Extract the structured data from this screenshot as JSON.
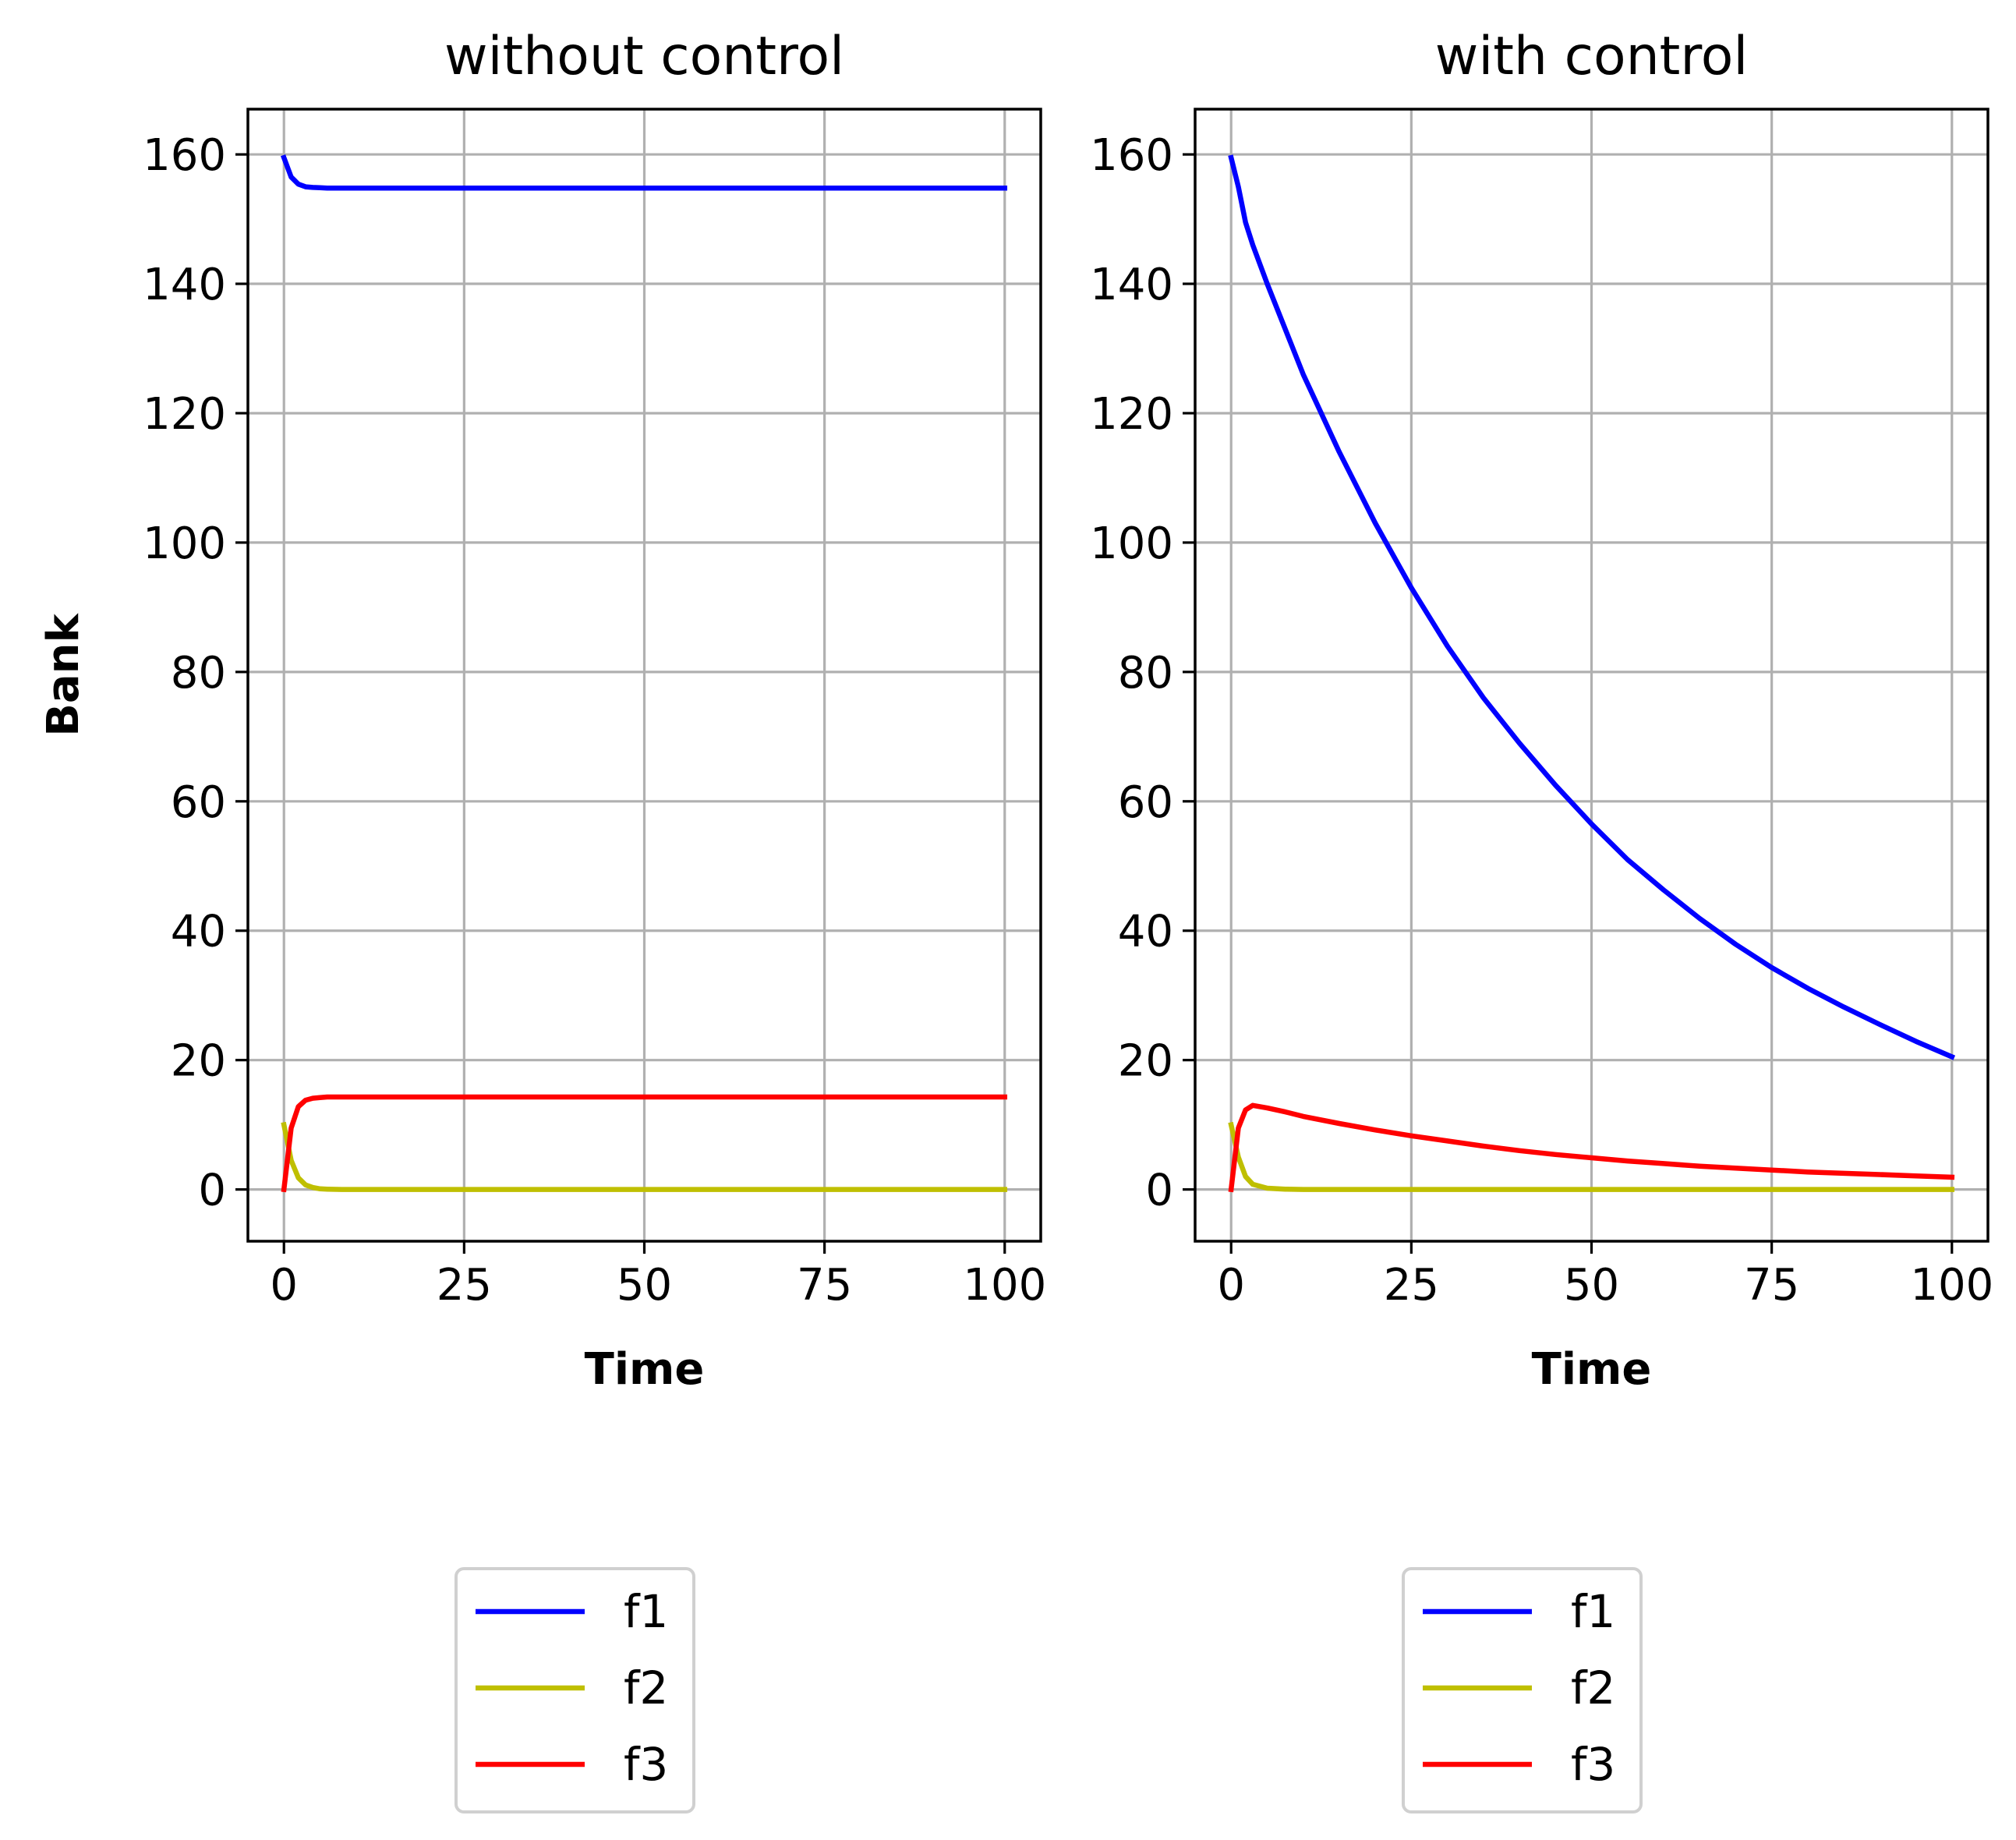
{
  "chart_data": [
    {
      "type": "line",
      "title": "without control",
      "xlabel": "Time",
      "ylabel": "Bank",
      "xlim": [
        -5,
        105
      ],
      "ylim": [
        -8,
        167
      ],
      "xticks": [
        0,
        25,
        50,
        75,
        100
      ],
      "yticks": [
        0,
        20,
        40,
        60,
        80,
        100,
        120,
        140,
        160
      ],
      "grid": true,
      "legend_position": "below",
      "x": [
        0,
        1,
        2,
        3,
        4,
        5,
        6,
        8,
        10,
        15,
        20,
        30,
        40,
        50,
        60,
        70,
        80,
        90,
        100
      ],
      "series": [
        {
          "name": "f1",
          "color": "#0000ff",
          "values": [
            159.5,
            156.5,
            155.4,
            155.0,
            154.9,
            154.85,
            154.8,
            154.8,
            154.8,
            154.8,
            154.8,
            154.8,
            154.8,
            154.8,
            154.8,
            154.8,
            154.8,
            154.8,
            154.8
          ]
        },
        {
          "name": "f2",
          "color": "#bfbf00",
          "values": [
            10.0,
            4.5,
            1.8,
            0.7,
            0.3,
            0.1,
            0.05,
            0.0,
            0.0,
            0.0,
            0.0,
            0.0,
            0.0,
            0.0,
            0.0,
            0.0,
            0.0,
            0.0,
            0.0
          ]
        },
        {
          "name": "f3",
          "color": "#ff0000",
          "values": [
            0.0,
            9.5,
            12.8,
            13.8,
            14.1,
            14.2,
            14.3,
            14.3,
            14.3,
            14.3,
            14.3,
            14.3,
            14.3,
            14.3,
            14.3,
            14.3,
            14.3,
            14.3,
            14.3
          ]
        }
      ]
    },
    {
      "type": "line",
      "title": "with control",
      "xlabel": "Time",
      "ylabel": "",
      "xlim": [
        -5,
        105
      ],
      "ylim": [
        -8,
        167
      ],
      "xticks": [
        0,
        25,
        50,
        75,
        100
      ],
      "yticks": [
        0,
        20,
        40,
        60,
        80,
        100,
        120,
        140,
        160
      ],
      "grid": true,
      "legend_position": "below",
      "x": [
        0,
        1,
        2,
        3,
        5,
        7.5,
        10,
        15,
        20,
        25,
        30,
        35,
        40,
        45,
        50,
        55,
        60,
        65,
        70,
        75,
        80,
        85,
        90,
        95,
        100
      ],
      "series": [
        {
          "name": "f1",
          "color": "#0000ff",
          "values": [
            159.5,
            155.0,
            149.5,
            146.0,
            140.0,
            133.0,
            126.0,
            114.0,
            103.0,
            93.0,
            84.0,
            76.0,
            69.0,
            62.5,
            56.5,
            51.0,
            46.3,
            41.9,
            37.9,
            34.3,
            31.1,
            28.2,
            25.5,
            22.9,
            20.5
          ]
        },
        {
          "name": "f2",
          "color": "#bfbf00",
          "values": [
            10.0,
            5.0,
            2.0,
            0.8,
            0.2,
            0.05,
            0.0,
            0.0,
            0.0,
            0.0,
            0.0,
            0.0,
            0.0,
            0.0,
            0.0,
            0.0,
            0.0,
            0.0,
            0.0,
            0.0,
            0.0,
            0.0,
            0.0,
            0.0,
            0.0
          ]
        },
        {
          "name": "f3",
          "color": "#ff0000",
          "values": [
            0.0,
            9.5,
            12.3,
            13.0,
            12.6,
            12.0,
            11.3,
            10.2,
            9.2,
            8.3,
            7.5,
            6.7,
            6.0,
            5.4,
            4.9,
            4.4,
            4.0,
            3.6,
            3.3,
            3.0,
            2.7,
            2.5,
            2.3,
            2.1,
            1.9
          ]
        }
      ]
    }
  ]
}
